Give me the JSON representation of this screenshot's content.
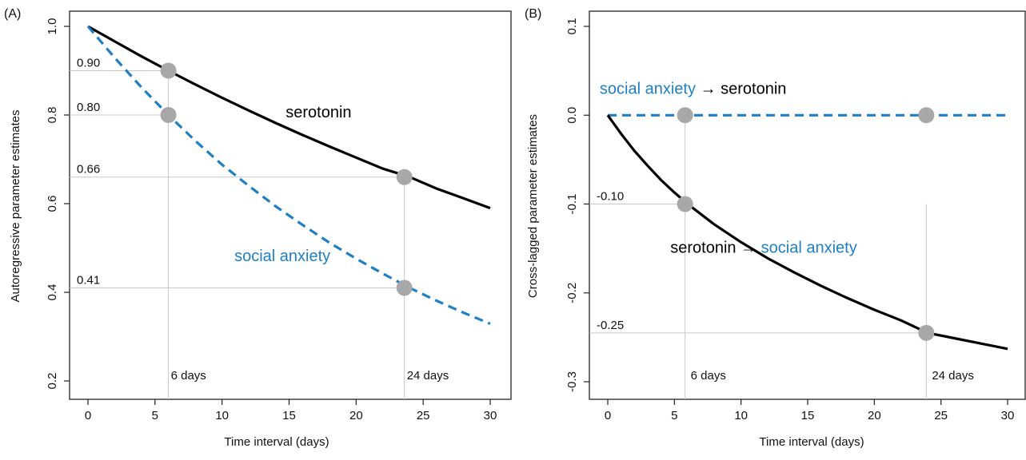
{
  "colors": {
    "serotonin": "#000000",
    "social_anxiety": "#1f7fc4",
    "marker": "#a8a8aa",
    "guide": "#c8c8c8",
    "axis": "#222222"
  },
  "chart_data": [
    {
      "type": "line",
      "panel_label": "(A)",
      "xlabel": "Time interval (days)",
      "ylabel": "Autoregressive parameter estimates",
      "xlim": [
        0,
        30
      ],
      "ylim": [
        0.2,
        1.0
      ],
      "xticks": [
        0,
        5,
        10,
        15,
        20,
        25,
        30
      ],
      "yticks": [
        0.2,
        0.4,
        0.6,
        0.8,
        1.0
      ],
      "ytick_labels": [
        "0.2",
        "0.4",
        "0.6",
        "0.8",
        "1.0"
      ],
      "grid": false,
      "series": [
        {
          "key": "serotonin",
          "name": "serotonin",
          "style": "solid",
          "x": [
            0,
            2,
            4,
            6,
            8,
            10,
            12,
            14,
            16,
            18,
            20,
            22,
            24,
            26,
            28,
            30
          ],
          "y": [
            1.0,
            0.966,
            0.932,
            0.9,
            0.869,
            0.839,
            0.81,
            0.782,
            0.755,
            0.729,
            0.704,
            0.679,
            0.66,
            0.634,
            0.612,
            0.59
          ]
        },
        {
          "key": "social_anxiety",
          "name": "social anxiety",
          "style": "dashed",
          "x": [
            0,
            2,
            4,
            6,
            8,
            10,
            12,
            14,
            16,
            18,
            20,
            22,
            24,
            26,
            28,
            30
          ],
          "y": [
            1.0,
            0.929,
            0.862,
            0.8,
            0.742,
            0.688,
            0.64,
            0.594,
            0.552,
            0.512,
            0.476,
            0.442,
            0.41,
            0.381,
            0.354,
            0.329
          ]
        }
      ],
      "series_labels": [
        {
          "text": "serotonin",
          "x": 17.2,
          "y": 0.795,
          "colorKey": "serotonin"
        },
        {
          "text": "social anxiety",
          "x": 14.5,
          "y": 0.47,
          "colorKey": "social_anxiety"
        }
      ],
      "markers": [
        {
          "x": 6,
          "y": 0.9,
          "label": "0.90"
        },
        {
          "x": 6,
          "y": 0.8,
          "label": "0.80"
        },
        {
          "x": 23.6,
          "y": 0.66,
          "label": "0.66"
        },
        {
          "x": 23.6,
          "y": 0.41,
          "label": "0.41"
        }
      ],
      "verticals": [
        {
          "x": 6,
          "label": "6 days"
        },
        {
          "x": 23.6,
          "label": "24 days"
        }
      ]
    },
    {
      "type": "line",
      "panel_label": "(B)",
      "xlabel": "Time interval (days)",
      "ylabel": "Cross-lagged parameter estimates",
      "xlim": [
        0,
        30
      ],
      "ylim": [
        -0.3,
        0.1
      ],
      "xticks": [
        0,
        5,
        10,
        15,
        20,
        25,
        30
      ],
      "yticks": [
        -0.3,
        -0.2,
        -0.1,
        0.0,
        0.1
      ],
      "ytick_labels": [
        "-0.3",
        "-0.2",
        "-0.1",
        "0.0",
        "0.1"
      ],
      "grid": false,
      "series": [
        {
          "key": "social_anxiety",
          "name": "social anxiety → serotonin",
          "style": "dashed",
          "x": [
            0,
            30
          ],
          "y": [
            0.0,
            0.0
          ]
        },
        {
          "key": "serotonin",
          "name": "serotonin → social anxiety",
          "style": "solid",
          "x": [
            0,
            1,
            2,
            3,
            4,
            5,
            6,
            8,
            10,
            12,
            14,
            16,
            18,
            20,
            22,
            24,
            26,
            28,
            30
          ],
          "y": [
            0.0,
            -0.021,
            -0.04,
            -0.057,
            -0.073,
            -0.087,
            -0.1,
            -0.123,
            -0.143,
            -0.161,
            -0.177,
            -0.192,
            -0.206,
            -0.219,
            -0.231,
            -0.245,
            -0.251,
            -0.257,
            -0.263
          ]
        }
      ],
      "series_labels": [
        {
          "parts": [
            {
              "text": "social anxiety",
              "colorKey": "social_anxiety"
            },
            {
              "text": " → ",
              "colorKey": "serotonin"
            },
            {
              "text": "serotonin",
              "colorKey": "serotonin"
            }
          ],
          "x": 6.4,
          "y": 0.024
        },
        {
          "parts": [
            {
              "text": "serotonin",
              "colorKey": "serotonin"
            },
            {
              "text": " → ",
              "colorKey": "serotonin"
            },
            {
              "text": "social anxiety",
              "colorKey": "social_anxiety"
            }
          ],
          "x": 11.7,
          "y": -0.155
        }
      ],
      "markers": [
        {
          "x": 5.8,
          "y": 0.0
        },
        {
          "x": 23.9,
          "y": 0.0
        },
        {
          "x": 5.8,
          "y": -0.1,
          "label": "-0.10"
        },
        {
          "x": 23.9,
          "y": -0.245,
          "label": "-0.25"
        }
      ],
      "verticals": [
        {
          "x": 5.8,
          "label": "6 days"
        },
        {
          "x": 23.9,
          "label": "24 days"
        }
      ]
    }
  ]
}
